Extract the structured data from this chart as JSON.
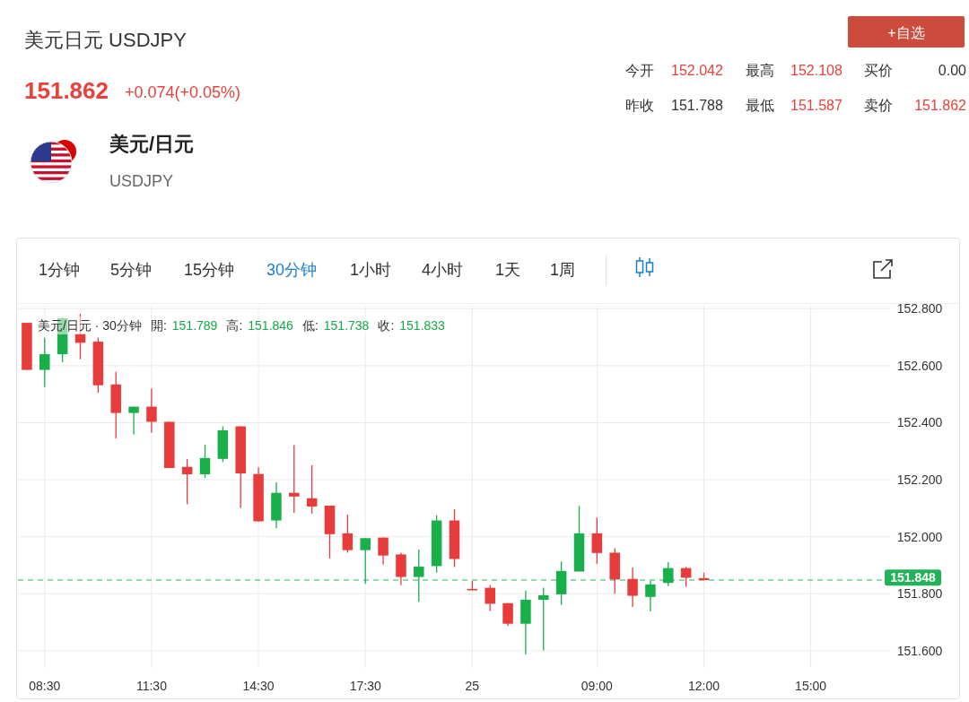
{
  "chart_data": {
    "type": "candlestick",
    "title": "美元日元 USDJPY",
    "subtitle": "151.862",
    "annotations": [
      "+0.074(+0.05%)",
      "美元/日元",
      "USDJPY",
      "+自选",
      "今开",
      "152.042",
      "最高",
      "152.108",
      "买价",
      "0.00",
      "昨收",
      "151.788",
      "最低",
      "151.587",
      "卖价",
      "151.862",
      "1分钟",
      "5分钟",
      "15分钟",
      "30分钟",
      "1小时",
      "4小时",
      "1天",
      "1周",
      "美元/日元 · 30分钟",
      "開:",
      "151.789",
      "高:",
      "151.846",
      "低:",
      "151.738",
      "收:",
      "151.833"
    ],
    "categories": [
      null,
      "08:30",
      null,
      null,
      null,
      null,
      null,
      "11:30",
      null,
      null,
      null,
      null,
      null,
      "14:30",
      null,
      null,
      null,
      null,
      null,
      "17:30",
      null,
      null,
      null,
      null,
      null,
      "25",
      null,
      null,
      null,
      null,
      null,
      null,
      "09:00",
      null,
      null,
      null,
      null,
      null,
      "12:00",
      null,
      null,
      null,
      null,
      null,
      "15:00",
      null,
      null,
      null,
      null
    ],
    "ohlc": [
      [
        152.75,
        152.75,
        152.585,
        152.585
      ],
      [
        152.585,
        152.698,
        152.525,
        152.64
      ],
      [
        152.64,
        152.77,
        152.612,
        152.766
      ],
      [
        152.711,
        152.782,
        152.622,
        152.68
      ],
      [
        152.684,
        152.698,
        152.505,
        152.531
      ],
      [
        152.534,
        152.578,
        152.345,
        152.434
      ],
      [
        152.434,
        152.456,
        152.358,
        152.456
      ],
      [
        152.456,
        152.52,
        152.365,
        152.403
      ],
      [
        152.403,
        152.403,
        152.241,
        152.241
      ],
      [
        152.245,
        152.272,
        152.114,
        152.219
      ],
      [
        152.219,
        152.323,
        152.206,
        152.276
      ],
      [
        152.273,
        152.387,
        152.262,
        152.373
      ],
      [
        152.387,
        152.387,
        152.101,
        152.222
      ],
      [
        152.22,
        152.243,
        152.054,
        152.054
      ],
      [
        152.057,
        152.191,
        152.03,
        152.154
      ],
      [
        152.154,
        152.321,
        152.084,
        152.141
      ],
      [
        152.135,
        152.251,
        152.081,
        152.106
      ],
      [
        152.109,
        152.109,
        151.924,
        152.009
      ],
      [
        152.012,
        152.078,
        151.944,
        151.953
      ],
      [
        151.953,
        151.995,
        151.835,
        151.995
      ],
      [
        151.997,
        151.997,
        151.903,
        151.934
      ],
      [
        151.938,
        151.944,
        151.83,
        151.859
      ],
      [
        151.859,
        151.955,
        151.772,
        151.895
      ],
      [
        151.897,
        152.075,
        151.874,
        152.057
      ],
      [
        152.057,
        152.096,
        151.894,
        151.922
      ],
      [
        151.817,
        151.845,
        151.812,
        151.812
      ],
      [
        151.821,
        151.83,
        151.74,
        151.765
      ],
      [
        151.767,
        151.767,
        151.688,
        151.695
      ],
      [
        151.695,
        151.811,
        151.587,
        151.779
      ],
      [
        151.779,
        151.821,
        151.601,
        151.795
      ],
      [
        151.798,
        151.913,
        151.761,
        151.88
      ],
      [
        151.878,
        152.108,
        151.878,
        152.012
      ],
      [
        152.012,
        152.067,
        151.905,
        151.943
      ],
      [
        151.944,
        151.96,
        151.8,
        151.85
      ],
      [
        151.852,
        151.892,
        151.754,
        151.793
      ],
      [
        151.789,
        151.846,
        151.738,
        151.833
      ],
      [
        151.838,
        151.911,
        151.827,
        151.89
      ],
      [
        151.89,
        151.894,
        151.824,
        151.856
      ],
      [
        151.855,
        151.874,
        151.848,
        151.848
      ],
      null,
      null,
      null,
      null,
      null,
      null,
      null,
      null,
      null,
      null
    ],
    "colors": [
      "#e83b3b",
      "#19b04b",
      "#19b04b",
      "#e83b3b",
      "#e83b3b",
      "#e83b3b",
      "#19b04b",
      "#e83b3b",
      "#e83b3b",
      "#e83b3b",
      "#19b04b",
      "#19b04b",
      "#e83b3b",
      "#e83b3b",
      "#19b04b",
      "#e83b3b",
      "#e83b3b",
      "#e83b3b",
      "#e83b3b",
      "#19b04b",
      "#e83b3b",
      "#e83b3b",
      "#19b04b",
      "#19b04b",
      "#e83b3b",
      "#e83b3b",
      "#e83b3b",
      "#e83b3b",
      "#19b04b",
      "#19b04b",
      "#19b04b",
      "#19b04b",
      "#e83b3b",
      "#e83b3b",
      "#e83b3b",
      "#19b04b",
      "#19b04b",
      "#e83b3b",
      "#e83b3b",
      null,
      null,
      null,
      null,
      null,
      null,
      null,
      null,
      null,
      null
    ],
    "ylim": [
      151.54,
      152.81
    ],
    "yticks": [
      {
        "value": 151.6,
        "label": "151.600"
      },
      {
        "value": 151.8,
        "label": "151.800"
      },
      {
        "value": 152.0,
        "label": "152.000"
      },
      {
        "value": 152.2,
        "label": "152.200"
      },
      {
        "value": 152.4,
        "label": "152.400"
      },
      {
        "value": 152.6,
        "label": "152.600"
      },
      {
        "value": 152.8,
        "label": "152.800"
      }
    ],
    "grid": true,
    "ref_lines": [
      {
        "axis": "y",
        "value": 151.848,
        "label": "151.848",
        "color": "#22b35a",
        "line_style": "dashed"
      }
    ]
  }
}
